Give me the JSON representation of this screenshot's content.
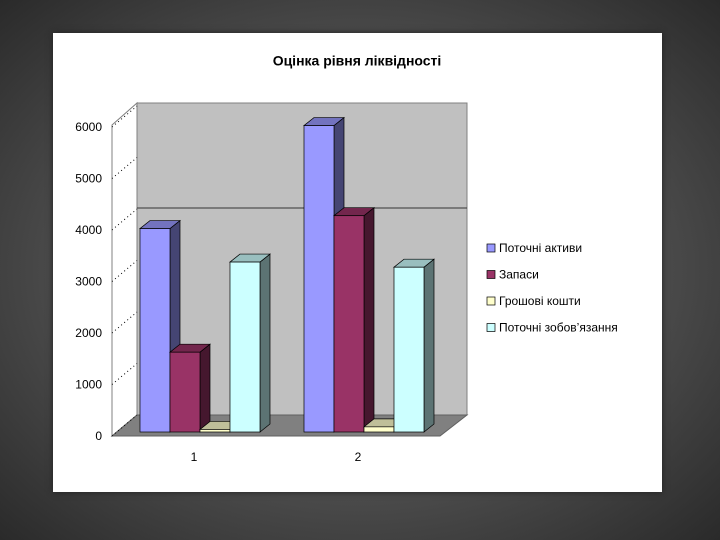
{
  "chart_data": {
    "type": "bar3d",
    "title": "Оцінка рівня ліквідності",
    "categories": [
      "1",
      "2"
    ],
    "series": [
      {
        "name": "Поточні активи",
        "color": "#9999ff",
        "values": [
          3950,
          5950
        ]
      },
      {
        "name": "Запаси",
        "color": "#993366",
        "values": [
          1550,
          4200
        ]
      },
      {
        "name": "Грошові кошти",
        "color": "#ffffcc",
        "values": [
          50,
          100
        ]
      },
      {
        "name": "Поточні зобов’язання",
        "color": "#ccffff",
        "values": [
          3300,
          3200
        ]
      }
    ],
    "ylim": [
      0,
      6000
    ],
    "yticks": [
      0,
      1000,
      2000,
      3000,
      4000,
      5000,
      6000
    ],
    "legend": "right"
  }
}
